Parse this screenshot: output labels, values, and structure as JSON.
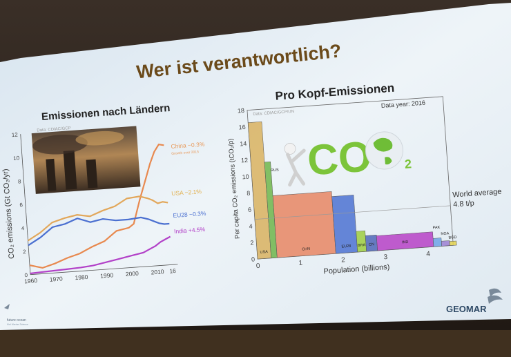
{
  "slide": {
    "title": "Wer ist verantwortlich?",
    "footer_logo_text": "GEOMAR",
    "footer_left_text": "future ocean",
    "footer_left_sub": "Kiel Marine Science"
  },
  "left_panel": {
    "title": "Emissionen nach Ländern",
    "source": "Data: CDIAC/GCP",
    "ylabel": "CO₂ emissions (Gt CO₂/yr)",
    "y_ticks": [
      "0",
      "2",
      "4",
      "6",
      "8",
      "10",
      "12"
    ],
    "x_ticks": [
      "1960",
      "1970",
      "1980",
      "1990",
      "2000",
      "2010",
      "16"
    ],
    "series_labels": [
      {
        "text": "China −0.3%",
        "color": "#e89a5b"
      },
      {
        "text": "Growth over 2015",
        "color": "#e89a5b"
      },
      {
        "text": "USA −2.1%",
        "color": "#e2b14f"
      },
      {
        "text": "EU28 −0.3%",
        "color": "#4a6fd0"
      },
      {
        "text": "India +4.5%",
        "color": "#b241c8"
      }
    ]
  },
  "chart_data": [
    {
      "type": "line",
      "title": "Emissionen nach Ländern",
      "xlabel": "",
      "ylabel": "CO₂ emissions (Gt CO₂/yr)",
      "xlim": [
        1960,
        2016
      ],
      "ylim": [
        0,
        12
      ],
      "series": [
        {
          "name": "China",
          "color": "#e8894f",
          "x": [
            1960,
            1965,
            1970,
            1975,
            1980,
            1985,
            1990,
            1995,
            2000,
            2002,
            2005,
            2008,
            2010,
            2012,
            2014,
            2016
          ],
          "values": [
            0.8,
            0.5,
            0.8,
            1.2,
            1.5,
            2.0,
            2.4,
            3.2,
            3.4,
            3.7,
            5.7,
            7.5,
            8.7,
            9.7,
            10.3,
            10.2
          ]
        },
        {
          "name": "USA",
          "color": "#e2a75a",
          "x": [
            1960,
            1965,
            1970,
            1975,
            1980,
            1985,
            1990,
            1995,
            2000,
            2005,
            2008,
            2010,
            2012,
            2014,
            2016
          ],
          "values": [
            2.9,
            3.5,
            4.3,
            4.6,
            4.8,
            4.6,
            5.0,
            5.3,
            5.9,
            6.0,
            5.8,
            5.6,
            5.3,
            5.4,
            5.3
          ]
        },
        {
          "name": "EU28",
          "color": "#4a6fd0",
          "x": [
            1960,
            1965,
            1970,
            1975,
            1980,
            1985,
            1990,
            1995,
            2000,
            2005,
            2008,
            2010,
            2012,
            2014,
            2016
          ],
          "values": [
            2.5,
            3.1,
            3.9,
            4.1,
            4.5,
            4.1,
            4.3,
            4.1,
            4.1,
            4.2,
            4.0,
            3.8,
            3.6,
            3.5,
            3.5
          ]
        },
        {
          "name": "India",
          "color": "#b241c8",
          "x": [
            1960,
            1965,
            1970,
            1975,
            1980,
            1985,
            1990,
            1995,
            2000,
            2005,
            2008,
            2010,
            2012,
            2014,
            2016
          ],
          "values": [
            0.1,
            0.15,
            0.2,
            0.25,
            0.3,
            0.4,
            0.6,
            0.8,
            1.0,
            1.2,
            1.5,
            1.7,
            2.0,
            2.2,
            2.4
          ]
        }
      ]
    },
    {
      "type": "bar",
      "title": "Pro Kopf-Emissionen",
      "source": "Data: CDIAC/GCP/UN",
      "data_year": "Data year: 2016",
      "xlabel": "Population (billions)",
      "ylabel": "Per capita CO₂ emissions (tCO₂/p)",
      "xlim": [
        0,
        4.6
      ],
      "ylim": [
        0,
        18
      ],
      "x_ticks": [
        "0",
        "1",
        "2",
        "3",
        "4"
      ],
      "y_ticks": [
        "0",
        "2",
        "4",
        "6",
        "8",
        "10",
        "12",
        "14",
        "16",
        "18"
      ],
      "world_average_label": "World average",
      "world_average_value_label": "4.8 t/p",
      "world_average": 4.8,
      "bars": [
        {
          "label": "USA",
          "population": 0.32,
          "value": 16.5,
          "color": "#d9b25f"
        },
        {
          "label": "RUS",
          "population": 0.14,
          "value": 11.6,
          "color": "#6fb54a"
        },
        {
          "label": "CHN",
          "population": 1.38,
          "value": 7.5,
          "color": "#e88663"
        },
        {
          "label": "EU28",
          "population": 0.51,
          "value": 6.9,
          "color": "#4c72d1"
        },
        {
          "label": "BRA",
          "population": 0.21,
          "value": 2.5,
          "color": "#9ecc3f"
        },
        {
          "label": "CN",
          "population": 0.26,
          "value": 1.9,
          "color": "#4f66b8"
        },
        {
          "label": "IND",
          "population": 1.32,
          "value": 1.8,
          "color": "#b641c6"
        },
        {
          "label": "PAK",
          "population": 0.19,
          "value": 1.0,
          "color": "#6fa3e6"
        },
        {
          "label": "NGA",
          "population": 0.19,
          "value": 0.6,
          "color": "#9c7fd1"
        },
        {
          "label": "BGD",
          "population": 0.16,
          "value": 0.5,
          "color": "#e4d24f"
        }
      ],
      "illustration_text": "CO",
      "illustration_subscript": "2"
    }
  ],
  "colors": {
    "slide_bg": "#e9f1f7",
    "title_color": "#6b4a1a",
    "photo_sky": "#8a6a4a"
  }
}
